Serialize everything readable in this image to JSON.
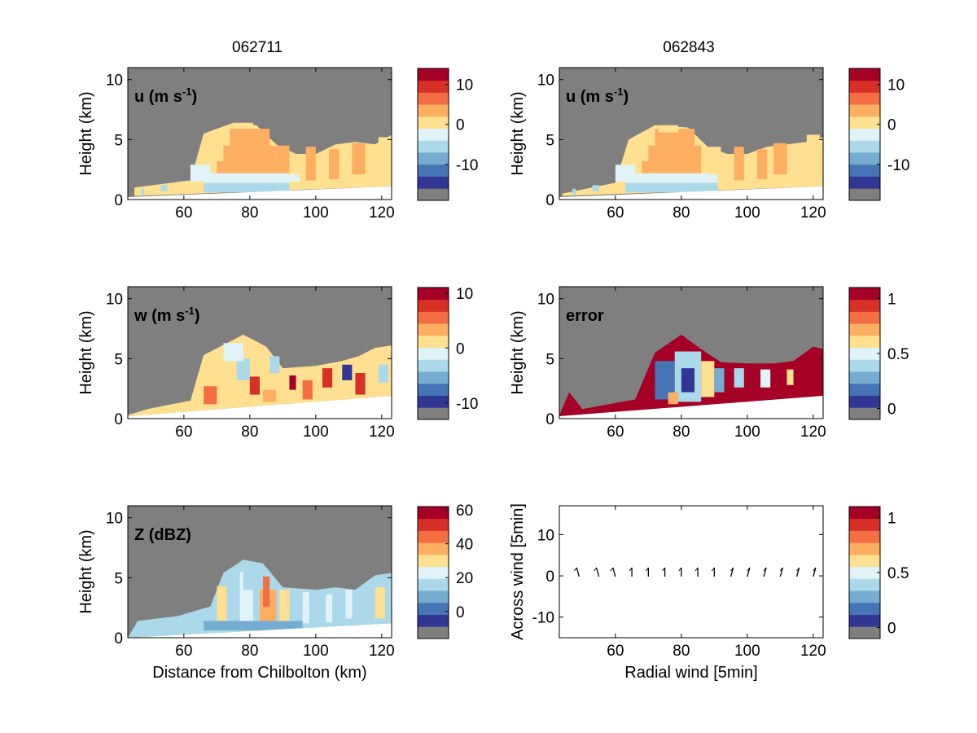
{
  "figure": {
    "col_titles": [
      "062711",
      "062843"
    ]
  },
  "chart_data": [
    {
      "id": "u_left",
      "type": "heatmap",
      "label": "u (m s",
      "label_sup": "-1",
      "label_close": ")",
      "ylabel": "Height (km)",
      "xlabel": "",
      "xlim": [
        43,
        123
      ],
      "ylim": [
        0,
        11
      ],
      "xticks": [
        60,
        80,
        100,
        120
      ],
      "yticks": [
        0,
        5,
        10
      ],
      "colorbar": {
        "range": [
          -19,
          14
        ],
        "ticks": [
          10,
          0,
          -10
        ]
      },
      "ground": [
        [
          43,
          0.2
        ],
        [
          123,
          1.1
        ]
      ],
      "cells": [
        [
          47,
          0.4,
          1,
          0.5,
          -5
        ],
        [
          53,
          0.7,
          2,
          0.5,
          -6
        ],
        [
          66,
          0.6,
          26,
          0.8,
          -7
        ],
        [
          66,
          1.4,
          26,
          0.8,
          -4
        ],
        [
          70,
          2.2,
          18,
          1.0,
          3
        ],
        [
          72,
          3.2,
          16,
          1.3,
          3
        ],
        [
          74,
          4.5,
          12,
          1.4,
          4
        ],
        [
          75,
          5.9,
          6,
          0.5,
          1
        ],
        [
          62,
          1.5,
          6,
          1.4,
          -2
        ],
        [
          88,
          2.2,
          4,
          2.3,
          2
        ],
        [
          91,
          1.5,
          4,
          0.6,
          -3
        ],
        [
          97,
          1.6,
          3,
          2.8,
          2
        ],
        [
          104,
          1.7,
          3,
          2.5,
          2
        ],
        [
          111,
          2.1,
          4,
          2.6,
          2
        ],
        [
          119,
          2.2,
          4,
          3.0,
          -1
        ]
      ],
      "echo_region": [
        [
          45,
          1.0
        ],
        [
          62,
          1.6
        ],
        [
          66,
          5.5
        ],
        [
          75,
          6.4
        ],
        [
          82,
          6.2
        ],
        [
          88,
          4.6
        ],
        [
          94,
          3.8
        ],
        [
          100,
          3.8
        ],
        [
          106,
          4.6
        ],
        [
          112,
          4.8
        ],
        [
          118,
          4.6
        ],
        [
          123,
          5.4
        ],
        [
          123,
          1.1
        ],
        [
          45,
          0.3
        ]
      ]
    },
    {
      "id": "u_right",
      "type": "heatmap",
      "label": "u (m s",
      "label_sup": "-1",
      "label_close": ")",
      "ylabel": "Height (km)",
      "xlabel": "",
      "xlim": [
        43,
        123
      ],
      "ylim": [
        0,
        11
      ],
      "xticks": [
        60,
        80,
        100,
        120
      ],
      "yticks": [
        0,
        5,
        10
      ],
      "colorbar": {
        "range": [
          -19,
          14
        ],
        "ticks": [
          10,
          0,
          -10
        ]
      },
      "ground": [
        [
          43,
          0.2
        ],
        [
          123,
          1.1
        ]
      ],
      "cells": [
        [
          47,
          0.4,
          1,
          0.5,
          -5
        ],
        [
          53,
          0.7,
          2,
          0.5,
          -6
        ],
        [
          63,
          0.6,
          28,
          0.8,
          -7
        ],
        [
          63,
          1.4,
          28,
          0.8,
          -4
        ],
        [
          68,
          2.2,
          18,
          1.0,
          3
        ],
        [
          70,
          3.2,
          16,
          1.3,
          3
        ],
        [
          72,
          4.5,
          12,
          1.4,
          4
        ],
        [
          73,
          5.6,
          6,
          0.6,
          1
        ],
        [
          60,
          1.5,
          6,
          1.4,
          -2
        ],
        [
          88,
          2.1,
          4,
          2.3,
          1
        ],
        [
          96,
          1.6,
          3,
          2.8,
          2
        ],
        [
          103,
          1.7,
          3,
          2.5,
          2
        ],
        [
          108,
          2.1,
          4,
          2.6,
          2
        ],
        [
          118,
          2.2,
          4,
          3.2,
          -1
        ]
      ],
      "echo_region": [
        [
          44,
          0.5
        ],
        [
          60,
          1.4
        ],
        [
          64,
          5.0
        ],
        [
          72,
          6.2
        ],
        [
          82,
          6.0
        ],
        [
          88,
          4.4
        ],
        [
          94,
          3.8
        ],
        [
          100,
          3.8
        ],
        [
          106,
          4.4
        ],
        [
          112,
          4.6
        ],
        [
          118,
          4.8
        ],
        [
          123,
          5.2
        ],
        [
          123,
          1.1
        ],
        [
          44,
          0.3
        ]
      ]
    },
    {
      "id": "w_left",
      "type": "heatmap",
      "label": "w (m s",
      "label_sup": "-1",
      "label_close": ")",
      "ylabel": "Height (km)",
      "xlabel": "",
      "xlim": [
        43,
        123
      ],
      "ylim": [
        0,
        11
      ],
      "xticks": [
        60,
        80,
        100,
        120
      ],
      "yticks": [
        0,
        5,
        10
      ],
      "colorbar": {
        "range": [
          -13,
          11
        ],
        "ticks": [
          10,
          0,
          -10
        ]
      },
      "ground": [
        [
          43,
          0.2
        ],
        [
          123,
          1.9
        ]
      ],
      "cells": [
        [
          66,
          1.2,
          4,
          1.5,
          6
        ],
        [
          76,
          3.2,
          4,
          1.8,
          -3
        ],
        [
          80,
          2.0,
          3,
          1.5,
          8
        ],
        [
          86,
          3.8,
          3,
          1.4,
          -4
        ],
        [
          92,
          2.4,
          2,
          1.2,
          9
        ],
        [
          96,
          1.6,
          3,
          1.6,
          6
        ],
        [
          102,
          2.6,
          3,
          1.6,
          8
        ],
        [
          108,
          3.2,
          3,
          1.3,
          -10
        ],
        [
          112,
          2.0,
          3,
          1.8,
          7
        ],
        [
          119,
          3.0,
          3,
          1.5,
          -4
        ],
        [
          84,
          1.4,
          4,
          1.0,
          3
        ],
        [
          72,
          4.8,
          6,
          1.5,
          -2
        ]
      ],
      "echo_region": [
        [
          43,
          0.3
        ],
        [
          49,
          0.8
        ],
        [
          62,
          1.5
        ],
        [
          66,
          5.3
        ],
        [
          78,
          7.0
        ],
        [
          85,
          6.0
        ],
        [
          90,
          4.2
        ],
        [
          100,
          4.4
        ],
        [
          108,
          4.8
        ],
        [
          113,
          5.2
        ],
        [
          118,
          5.9
        ],
        [
          123,
          6.1
        ],
        [
          123,
          1.9
        ],
        [
          43,
          0.2
        ]
      ]
    },
    {
      "id": "error_right",
      "type": "heatmap",
      "label": "error",
      "label_sup": "",
      "label_close": "",
      "ylabel": "Height (km)",
      "xlabel": "",
      "xlim": [
        43,
        123
      ],
      "ylim": [
        0,
        11
      ],
      "xticks": [
        60,
        80,
        100,
        120
      ],
      "yticks": [
        0,
        5,
        10
      ],
      "colorbar": {
        "range": [
          -0.1,
          1.1
        ],
        "ticks": [
          1,
          0.5,
          0
        ]
      },
      "ground": [
        [
          43,
          0.2
        ],
        [
          123,
          1.9
        ]
      ],
      "cells": [
        [
          72,
          1.6,
          6,
          3.2,
          0.2
        ],
        [
          78,
          1.4,
          8,
          4.2,
          0.4
        ],
        [
          80,
          2.2,
          4,
          2.0,
          0.1
        ],
        [
          86,
          1.8,
          4,
          3.0,
          0.6
        ],
        [
          76,
          1.2,
          3,
          1.0,
          0.7
        ],
        [
          90,
          2.2,
          3,
          2.0,
          0.3
        ],
        [
          96,
          2.6,
          3,
          1.6,
          0.4
        ],
        [
          104,
          2.6,
          3,
          1.5,
          0.5
        ],
        [
          112,
          2.8,
          2,
          1.3,
          0.6
        ]
      ],
      "echo_region": [
        [
          43,
          0.3
        ],
        [
          46,
          2.2
        ],
        [
          50,
          0.8
        ],
        [
          66,
          1.6
        ],
        [
          72,
          5.5
        ],
        [
          80,
          7.0
        ],
        [
          86,
          5.8
        ],
        [
          92,
          4.7
        ],
        [
          100,
          4.6
        ],
        [
          108,
          4.6
        ],
        [
          114,
          4.8
        ],
        [
          120,
          6.0
        ],
        [
          123,
          5.8
        ],
        [
          123,
          1.9
        ],
        [
          43,
          0.2
        ]
      ]
    },
    {
      "id": "z_left",
      "type": "heatmap",
      "label": "Z (dBZ)",
      "label_sup": "",
      "label_close": "",
      "ylabel": "Height (km)",
      "xlabel": "Distance from Chilbolton (km)",
      "xlim": [
        43,
        123
      ],
      "ylim": [
        0,
        11
      ],
      "xticks": [
        60,
        80,
        100,
        120
      ],
      "yticks": [
        0,
        5,
        10
      ],
      "colorbar": {
        "range": [
          -16,
          62
        ],
        "ticks": [
          60,
          40,
          20,
          0
        ]
      },
      "ground": [
        [
          43,
          0.0
        ],
        [
          123,
          1.2
        ]
      ],
      "cells": [
        [
          70,
          0.8,
          3,
          3.5,
          28
        ],
        [
          77,
          1.0,
          4,
          4.5,
          24
        ],
        [
          83,
          1.0,
          5,
          3.0,
          38
        ],
        [
          84,
          2.6,
          2,
          2.5,
          44
        ],
        [
          89,
          1.2,
          3,
          2.8,
          30
        ],
        [
          96,
          1.2,
          2,
          2.6,
          26
        ],
        [
          103,
          1.3,
          2,
          2.3,
          24
        ],
        [
          109,
          1.6,
          2,
          2.4,
          22
        ],
        [
          118,
          1.6,
          3,
          2.6,
          32
        ],
        [
          78,
          4.0,
          6,
          1.8,
          16
        ],
        [
          66,
          0.6,
          30,
          0.8,
          12
        ]
      ],
      "echo_region": [
        [
          43,
          0.0
        ],
        [
          46,
          1.4
        ],
        [
          58,
          1.8
        ],
        [
          68,
          2.6
        ],
        [
          72,
          5.4
        ],
        [
          78,
          6.5
        ],
        [
          84,
          6.2
        ],
        [
          90,
          4.2
        ],
        [
          100,
          4.0
        ],
        [
          106,
          4.2
        ],
        [
          112,
          4.0
        ],
        [
          118,
          5.2
        ],
        [
          123,
          5.4
        ],
        [
          123,
          1.2
        ],
        [
          43,
          0.0
        ]
      ]
    },
    {
      "id": "wind_right",
      "type": "scatter",
      "label": "",
      "label_sup": "",
      "label_close": "",
      "ylabel": "Across wind [5min]",
      "xlabel": "Radial wind [5min]",
      "xlim": [
        43,
        123
      ],
      "ylim": [
        -15,
        17
      ],
      "xticks": [
        60,
        80,
        100,
        120
      ],
      "yticks": [
        10,
        0,
        -10
      ],
      "colorbar": {
        "range": [
          -0.1,
          1.1
        ],
        "ticks": [
          1,
          0.5,
          0
        ]
      },
      "vectors": [
        [
          49,
          1.0,
          -1
        ],
        [
          55,
          1.0,
          -1
        ],
        [
          60,
          1.0,
          -1
        ],
        [
          65,
          1.0,
          0
        ],
        [
          70,
          1.0,
          0
        ],
        [
          75,
          1.0,
          0
        ],
        [
          80,
          1.0,
          0
        ],
        [
          85,
          1.0,
          0
        ],
        [
          90,
          1.0,
          0
        ],
        [
          95,
          1.0,
          1
        ],
        [
          100,
          1.0,
          1
        ],
        [
          105,
          1.0,
          1
        ],
        [
          110,
          1.0,
          1
        ],
        [
          115,
          1.0,
          1
        ],
        [
          120,
          1.0,
          1
        ]
      ]
    }
  ]
}
